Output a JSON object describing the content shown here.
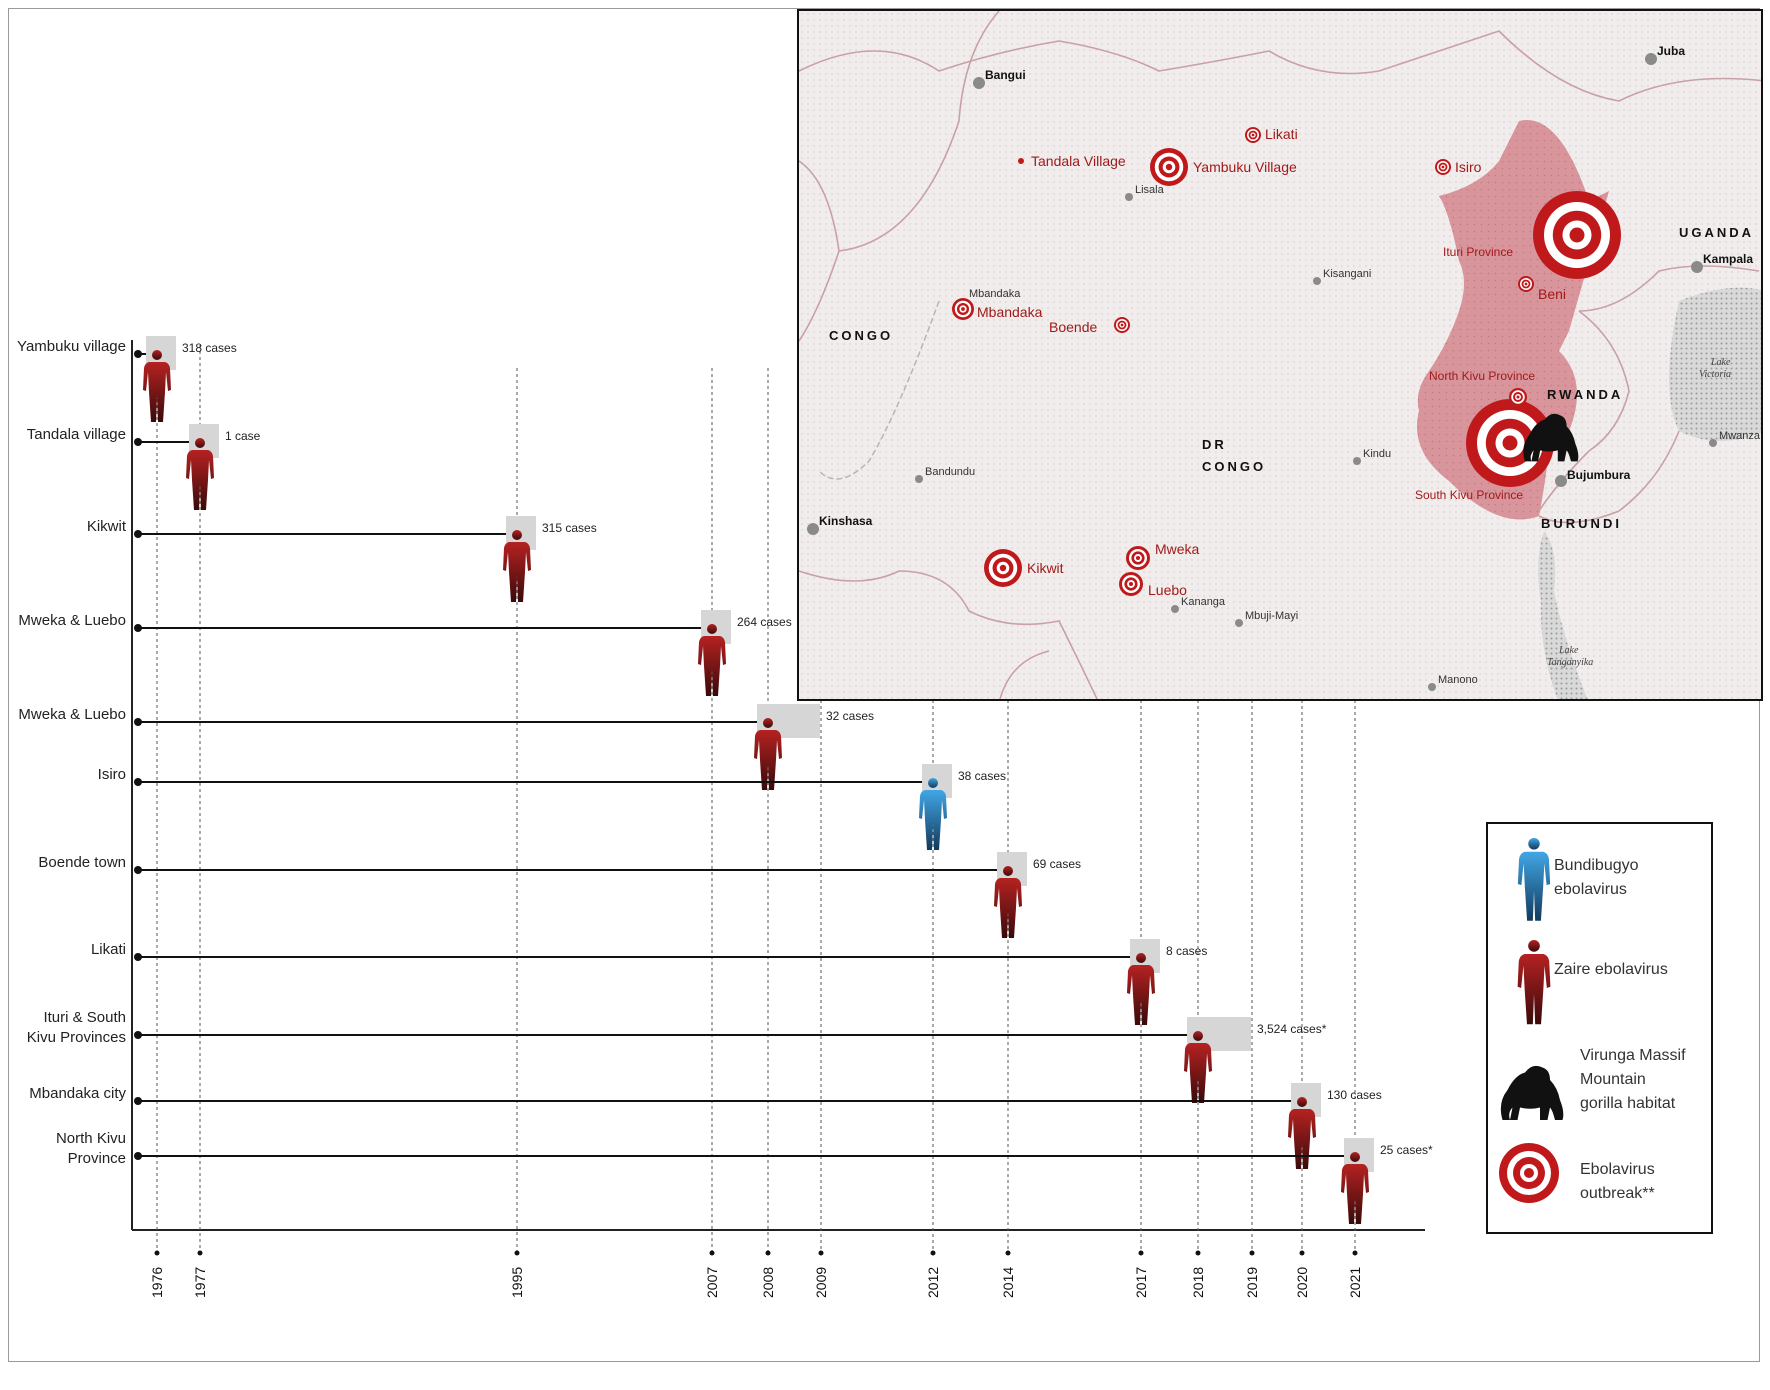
{
  "timeline": {
    "years": [
      "1976",
      "1977",
      "1995",
      "2007",
      "2008",
      "2009",
      "2012",
      "2014",
      "2017",
      "2018",
      "2019",
      "2020",
      "2021"
    ],
    "outbreaks": [
      {
        "location": "Yambuku village",
        "cases_label": "318 cases",
        "start_year": 1976,
        "end_year": 1976,
        "virus": "zaire"
      },
      {
        "location": "Tandala village",
        "cases_label": "1 case",
        "start_year": 1977,
        "end_year": 1977,
        "virus": "zaire"
      },
      {
        "location": "Kikwit",
        "cases_label": "315 cases",
        "start_year": 1995,
        "end_year": 1995,
        "virus": "zaire"
      },
      {
        "location": "Mweka & Luebo",
        "cases_label": "264 cases",
        "start_year": 2007,
        "end_year": 2007,
        "virus": "zaire"
      },
      {
        "location": "Mweka & Luebo",
        "cases_label": "32 cases",
        "start_year": 2008,
        "end_year": 2009,
        "virus": "zaire"
      },
      {
        "location": "Isiro",
        "cases_label": "38 cases",
        "start_year": 2012,
        "end_year": 2012,
        "virus": "bundibugyo"
      },
      {
        "location": "Boende town",
        "cases_label": "69 cases",
        "start_year": 2014,
        "end_year": 2014,
        "virus": "zaire"
      },
      {
        "location": "Likati",
        "cases_label": "8 cases",
        "start_year": 2017,
        "end_year": 2017,
        "virus": "zaire"
      },
      {
        "location": [
          "Ituri & South",
          "Kivu Provinces"
        ],
        "cases_label": "3,524 cases*",
        "start_year": 2018,
        "end_year": 2019,
        "virus": "zaire"
      },
      {
        "location": "Mbandaka city",
        "cases_label": "130 cases",
        "start_year": 2020,
        "end_year": 2020,
        "virus": "zaire"
      },
      {
        "location": [
          "North Kivu",
          "Province"
        ],
        "cases_label": "25 cases*",
        "start_year": 2021,
        "end_year": 2021,
        "virus": "zaire"
      }
    ]
  },
  "map": {
    "countries": [
      {
        "label": "CONGO"
      },
      {
        "label": "DR"
      },
      {
        "label": "CONGO"
      },
      {
        "label": "UGANDA"
      },
      {
        "label": "RWANDA"
      },
      {
        "label": "BURUNDI"
      }
    ],
    "cities": [
      {
        "label": "Bangui",
        "bold": true
      },
      {
        "label": "Juba",
        "bold": true
      },
      {
        "label": "Kampala",
        "bold": true
      },
      {
        "label": "Kinshasa",
        "bold": true
      },
      {
        "label": "Bujumbura",
        "bold": true
      },
      {
        "label": "Lisala",
        "bold": false
      },
      {
        "label": "Kisangani",
        "bold": false
      },
      {
        "label": "Bandundu",
        "bold": false
      },
      {
        "label": "Kindu",
        "bold": false
      },
      {
        "label": "Kananga",
        "bold": false
      },
      {
        "label": "Mbuji-Mayi",
        "bold": false
      },
      {
        "label": "Manono",
        "bold": false
      },
      {
        "label": "Mwanza",
        "bold": false
      },
      {
        "label": "Mbandaka",
        "bold": false
      }
    ],
    "outbreak_sites": [
      {
        "label": "Tandala Village",
        "size": "dot"
      },
      {
        "label": "Yambuku Village",
        "size": "medium"
      },
      {
        "label": "Likati",
        "size": "small"
      },
      {
        "label": "Isiro",
        "size": "small"
      },
      {
        "label": "Beni",
        "size": "small"
      },
      {
        "label": "Mbandaka",
        "size": "small"
      },
      {
        "label": "Boende",
        "size": "small"
      },
      {
        "label": "Mweka",
        "size": "small"
      },
      {
        "label": "Luebo",
        "size": "small"
      },
      {
        "label": "Kikwit",
        "size": "medium"
      }
    ],
    "provinces": [
      "Ituri Province",
      "North Kivu Province",
      "South Kivu Province"
    ],
    "lakes": [
      [
        "Lake",
        "Victoria"
      ],
      [
        "Lake",
        "Tanganyika"
      ]
    ]
  },
  "legend": {
    "items": [
      {
        "icon": "blue-figure-icon",
        "lines": [
          "Bundibugyo",
          "ebolavirus"
        ]
      },
      {
        "icon": "red-figure-icon",
        "lines": [
          "Zaire ebolavirus"
        ]
      },
      {
        "icon": "gorilla-icon",
        "lines": [
          "Virunga Massif",
          "Mountain",
          "gorilla habitat"
        ]
      },
      {
        "icon": "target-icon",
        "lines": [
          "Ebolavirus",
          "outbreak**"
        ]
      }
    ]
  },
  "colors": {
    "zaire": "#8b1818",
    "bundibugyo": "#2a7fc0",
    "target": "#c0191c",
    "province": "#c9838a",
    "box": "#d6d6d6"
  }
}
